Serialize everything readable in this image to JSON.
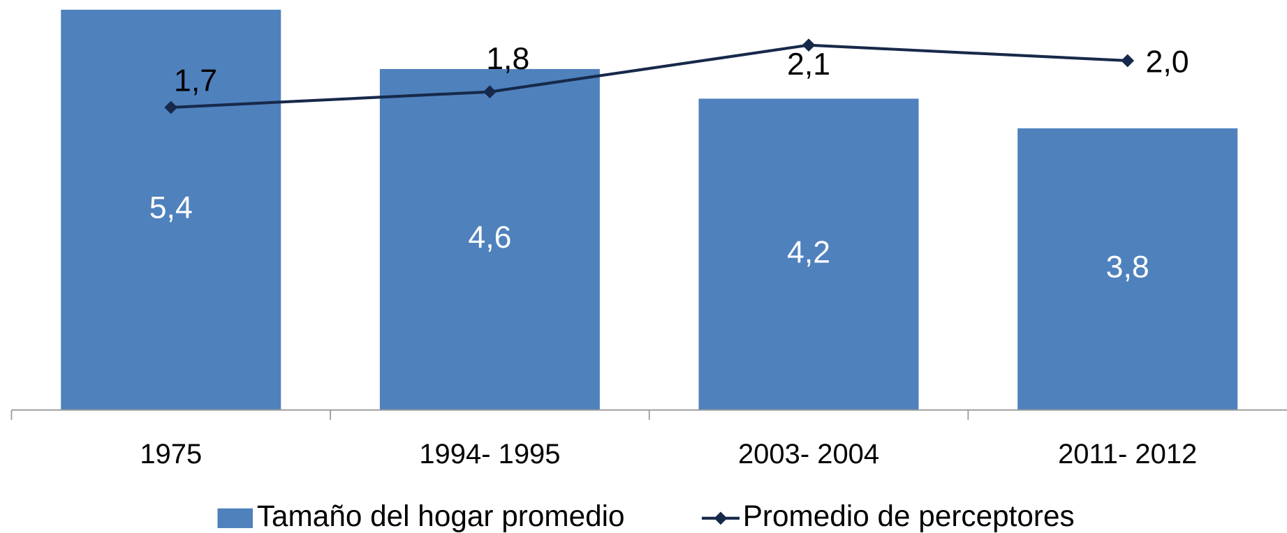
{
  "chart_data": {
    "type": "bar+line",
    "categories": [
      "1975",
      "1994- 1995",
      "2003- 2004",
      "2011- 2012"
    ],
    "ylim": [
      0,
      6
    ],
    "y2lim": [
      0,
      2.4
    ],
    "series": [
      {
        "name": "Tamaño del hogar promedio",
        "color": "#4f81bd",
        "type": "bar",
        "values": [
          5.4,
          4.6,
          4.2,
          3.8
        ],
        "value_labels": [
          "5,4",
          "4,6",
          "4,2",
          "3,8"
        ]
      },
      {
        "name": "Promedio de perceptores",
        "color": "#17294a",
        "type": "line",
        "axis": "y2",
        "values": [
          1.7,
          1.8,
          2.1,
          2.0
        ],
        "value_labels": [
          "1,7",
          "1,8",
          "2,1",
          "2,0"
        ]
      }
    ],
    "legend": "bottom"
  }
}
